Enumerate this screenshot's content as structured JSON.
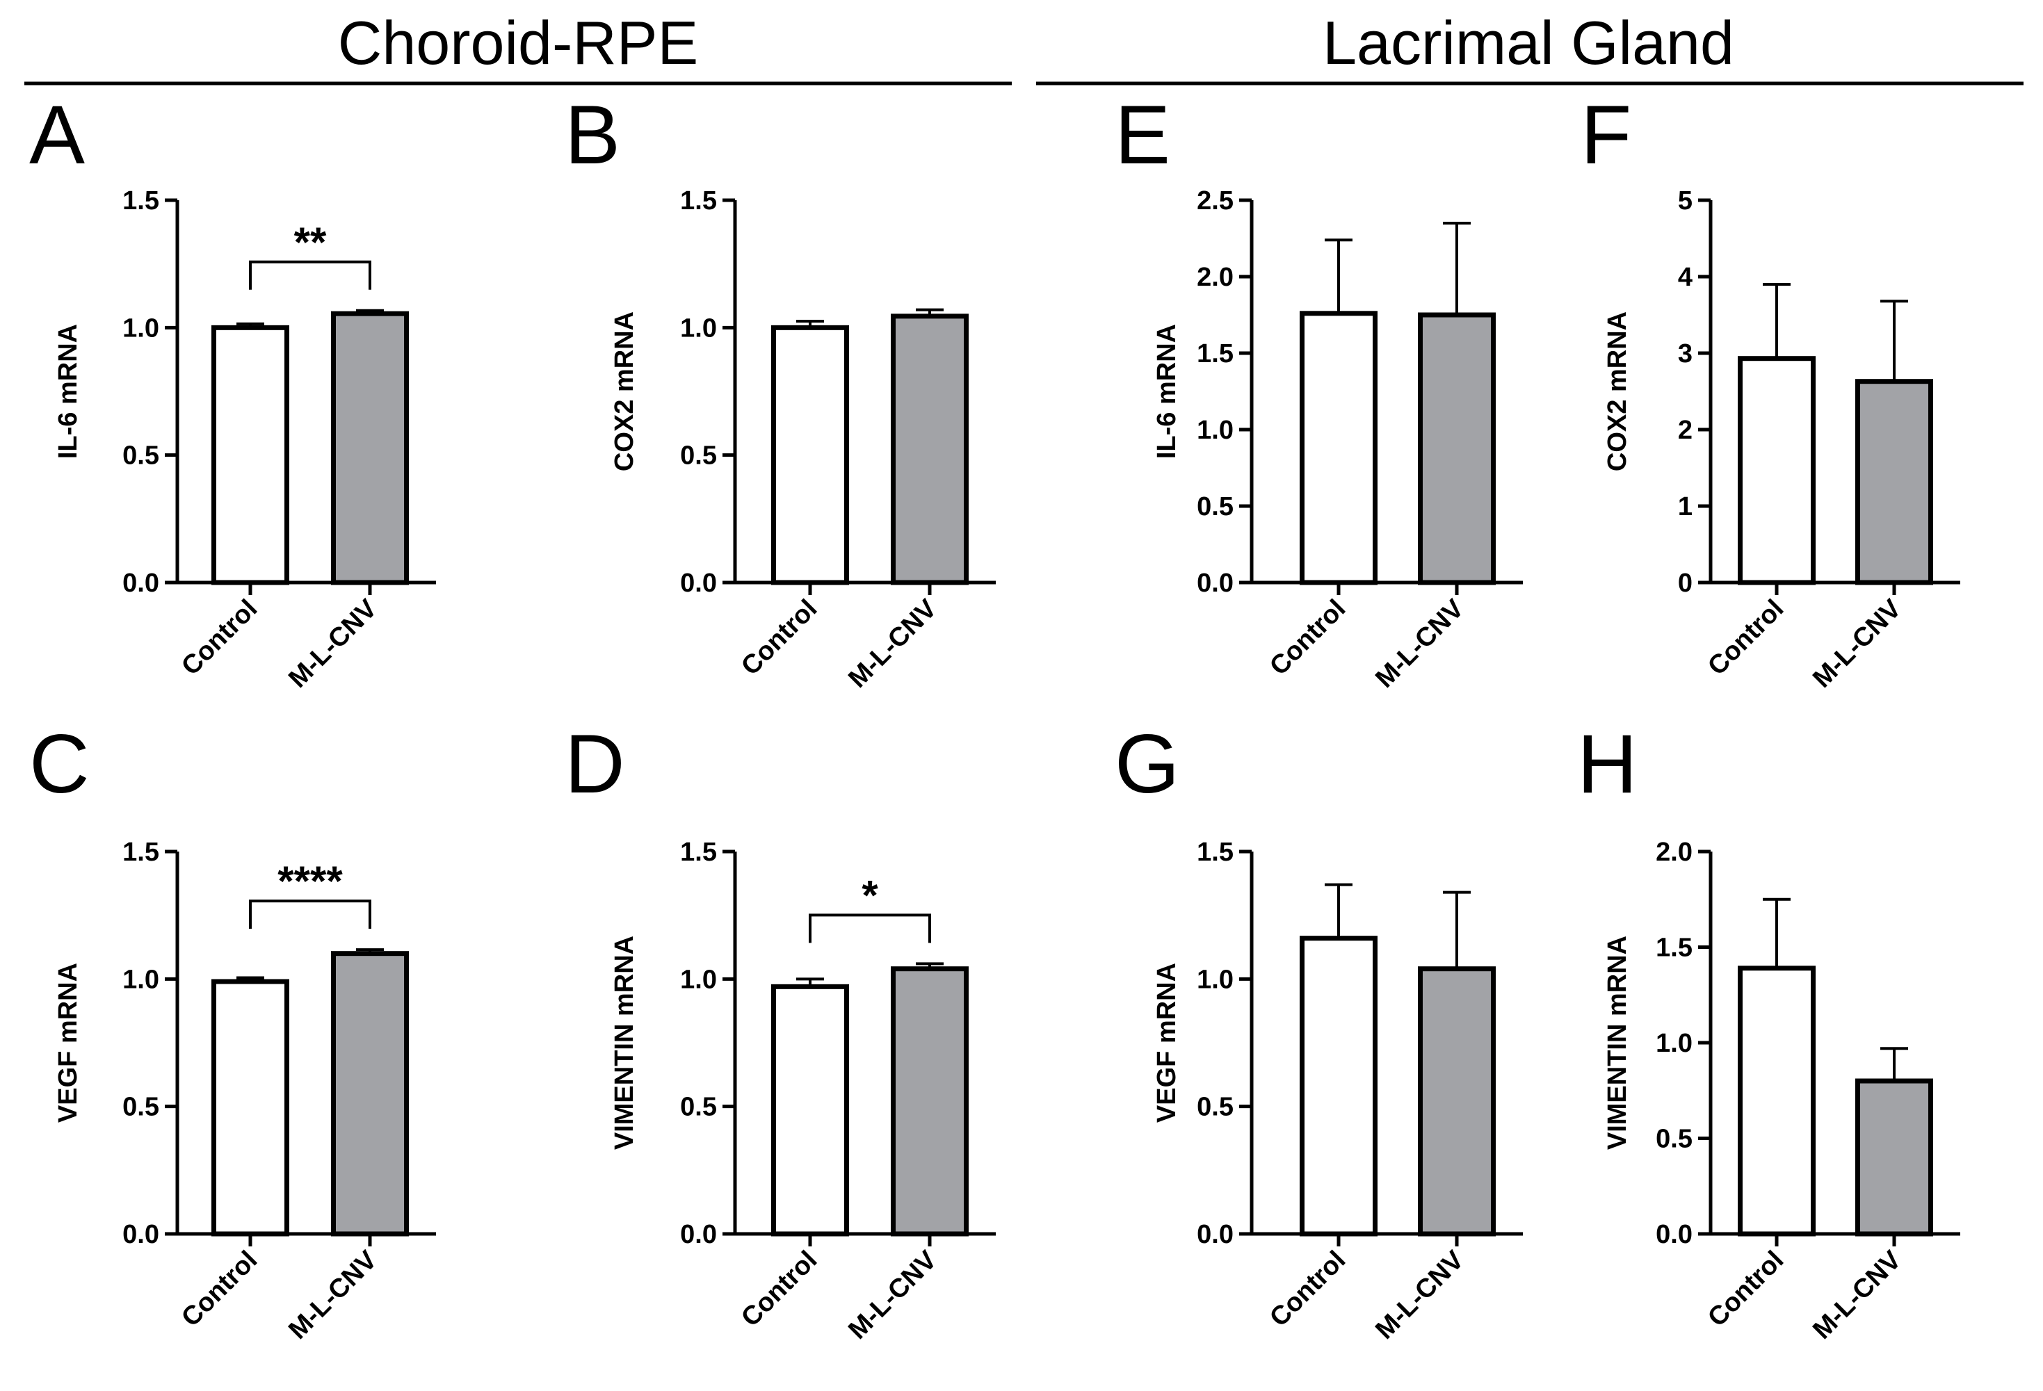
{
  "sections": [
    {
      "title": "Choroid-RPE"
    },
    {
      "title": "Lacrimal Gland"
    }
  ],
  "colors": {
    "control_fill": "#ffffff",
    "mlcnv_fill": "#a2a3a7",
    "stroke": "#000000"
  },
  "chart_data": [
    {
      "panel": "A",
      "type": "bar",
      "title": "",
      "ylabel": "IL-6 mRNA",
      "categories": [
        "Control",
        "M-L-CNV"
      ],
      "values": [
        1.0,
        1.055
      ],
      "errors": [
        0.015,
        0.012
      ],
      "ylim": [
        0,
        1.5
      ],
      "ticks": [
        "0.0",
        "0.5",
        "1.0",
        "1.5"
      ],
      "significance": "**"
    },
    {
      "panel": "B",
      "type": "bar",
      "title": "",
      "ylabel": "COX2 mRNA",
      "categories": [
        "Control",
        "M-L-CNV"
      ],
      "values": [
        1.0,
        1.045
      ],
      "errors": [
        0.025,
        0.025
      ],
      "ylim": [
        0,
        1.5
      ],
      "ticks": [
        "0.0",
        "0.5",
        "1.0",
        "1.5"
      ],
      "significance": ""
    },
    {
      "panel": "C",
      "type": "bar",
      "title": "",
      "ylabel": "VEGF mRNA",
      "categories": [
        "Control",
        "M-L-CNV"
      ],
      "values": [
        0.99,
        1.1
      ],
      "errors": [
        0.015,
        0.015
      ],
      "ylim": [
        0,
        1.5
      ],
      "ticks": [
        "0.0",
        "0.5",
        "1.0",
        "1.5"
      ],
      "significance": "****"
    },
    {
      "panel": "D",
      "type": "bar",
      "title": "",
      "ylabel": "VIMENTIN mRNA",
      "categories": [
        "Control",
        "M-L-CNV"
      ],
      "values": [
        0.97,
        1.04
      ],
      "errors": [
        0.03,
        0.02
      ],
      "ylim": [
        0,
        1.5
      ],
      "ticks": [
        "0.0",
        "0.5",
        "1.0",
        "1.5"
      ],
      "significance": "*"
    },
    {
      "panel": "E",
      "type": "bar",
      "title": "",
      "ylabel": "IL-6 mRNA",
      "categories": [
        "Control",
        "M-L-CNV"
      ],
      "values": [
        1.76,
        1.75
      ],
      "errors": [
        0.48,
        0.6
      ],
      "ylim": [
        0,
        2.5
      ],
      "ticks": [
        "0.0",
        "0.5",
        "1.0",
        "1.5",
        "2.0",
        "2.5"
      ],
      "significance": ""
    },
    {
      "panel": "F",
      "type": "bar",
      "title": "",
      "ylabel": "COX2 mRNA",
      "categories": [
        "Control",
        "M-L-CNV"
      ],
      "values": [
        2.93,
        2.63
      ],
      "errors": [
        0.97,
        1.05
      ],
      "ylim": [
        0,
        5
      ],
      "ticks": [
        "0",
        "1",
        "2",
        "3",
        "4",
        "5"
      ],
      "significance": ""
    },
    {
      "panel": "G",
      "type": "bar",
      "title": "",
      "ylabel": "VEGF mRNA",
      "categories": [
        "Control",
        "M-L-CNV"
      ],
      "values": [
        1.16,
        1.04
      ],
      "errors": [
        0.21,
        0.3
      ],
      "ylim": [
        0,
        1.5
      ],
      "ticks": [
        "0.0",
        "0.5",
        "1.0",
        "1.5"
      ],
      "significance": ""
    },
    {
      "panel": "H",
      "type": "bar",
      "title": "",
      "ylabel": "VIMENTIN mRNA",
      "categories": [
        "Control",
        "M-L-CNV"
      ],
      "values": [
        1.39,
        0.8
      ],
      "errors": [
        0.36,
        0.17
      ],
      "ylim": [
        0,
        2.0
      ],
      "ticks": [
        "0.0",
        "0.5",
        "1.0",
        "1.5",
        "2.0"
      ],
      "significance": ""
    }
  ]
}
